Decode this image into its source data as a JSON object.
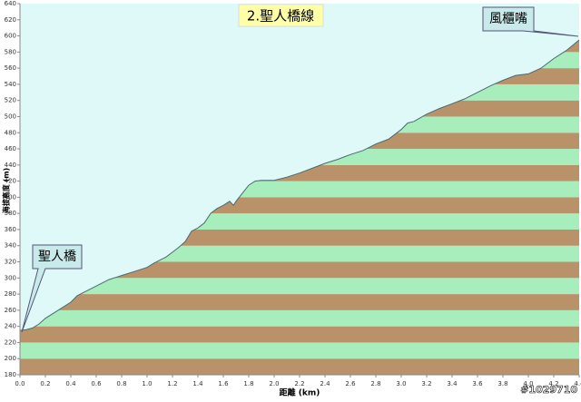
{
  "chart_data": {
    "type": "area",
    "title": "2.聖人橋線",
    "x_label": "距離 (km)",
    "y_label": "海拔高度 (m)",
    "watermark": "#1029710",
    "annotations": [
      {
        "text": "聖人橋"
      },
      {
        "text": "風櫃嘴"
      }
    ],
    "x": [
      0.0,
      0.05,
      0.1,
      0.15,
      0.2,
      0.3,
      0.4,
      0.45,
      0.5,
      0.6,
      0.7,
      0.8,
      0.9,
      1.0,
      1.05,
      1.1,
      1.15,
      1.2,
      1.25,
      1.3,
      1.35,
      1.4,
      1.45,
      1.5,
      1.55,
      1.6,
      1.65,
      1.68,
      1.7,
      1.75,
      1.8,
      1.85,
      1.9,
      2.0,
      2.1,
      2.2,
      2.3,
      2.4,
      2.5,
      2.6,
      2.7,
      2.8,
      2.9,
      3.0,
      3.05,
      3.1,
      3.2,
      3.3,
      3.4,
      3.5,
      3.6,
      3.7,
      3.8,
      3.9,
      4.0,
      4.1,
      4.2,
      4.3,
      4.4
    ],
    "series": [
      {
        "name": "elevation",
        "color": "#4a6a70",
        "values": [
          235,
          236,
          238,
          243,
          250,
          260,
          270,
          278,
          282,
          290,
          298,
          303,
          308,
          313,
          318,
          322,
          326,
          332,
          338,
          345,
          358,
          362,
          368,
          380,
          386,
          390,
          395,
          390,
          395,
          405,
          415,
          420,
          421,
          421,
          425,
          430,
          436,
          442,
          447,
          453,
          458,
          466,
          472,
          484,
          492,
          494,
          503,
          510,
          516,
          522,
          530,
          538,
          545,
          551,
          553,
          560,
          572,
          582,
          595
        ]
      }
    ],
    "band_colors": [
      "#b9926a",
      "#a8eebc"
    ],
    "background": "#dff8f8",
    "xlim": [
      0,
      4.4
    ],
    "xticks": [
      {
        "value": 0,
        "label": "0.0"
      },
      0.2,
      0.4,
      0.6,
      0.8,
      {
        "value": 1,
        "label": "1.0"
      },
      1.2,
      1.4,
      1.6,
      1.8,
      {
        "value": 2,
        "label": "2.0"
      },
      2.2,
      2.4,
      2.6,
      2.8,
      {
        "value": 3,
        "label": "3.0"
      },
      3.2,
      3.4,
      3.6,
      3.8,
      {
        "value": 4,
        "label": "4.0"
      },
      4.2,
      4.4
    ],
    "ylim": [
      180,
      640
    ],
    "yticks": [
      180,
      200,
      220,
      240,
      260,
      280,
      300,
      320,
      340,
      360,
      380,
      400,
      420,
      440,
      460,
      480,
      500,
      520,
      540,
      560,
      580,
      600,
      620,
      640
    ]
  }
}
